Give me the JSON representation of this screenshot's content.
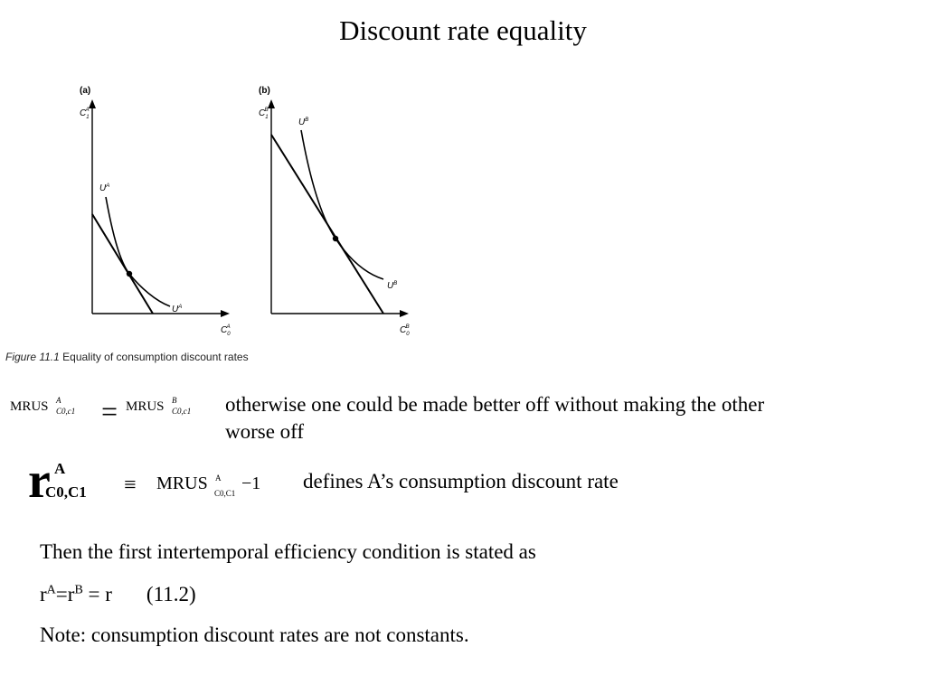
{
  "slide": {
    "title": "Discount rate equality"
  },
  "figure": {
    "panel_a_label": "(a)",
    "panel_b_label": "(b)",
    "a_y_axis": {
      "base": "C",
      "sub": "1",
      "sup": "A"
    },
    "a_x_axis": {
      "base": "C",
      "sub": "0",
      "sup": "A"
    },
    "a_curve_top": {
      "base": "U",
      "sup": "A"
    },
    "a_curve_bottom": {
      "base": "U",
      "sup": "A"
    },
    "b_y_axis": {
      "base": "C",
      "sub": "1",
      "sup": "B"
    },
    "b_x_axis": {
      "base": "C",
      "sub": "0",
      "sup": "B"
    },
    "b_curve_top": {
      "base": "U",
      "sup": "B"
    },
    "b_curve_bottom": {
      "base": "U",
      "sup": "B"
    },
    "caption_label": "Figure 11.1",
    "caption_text": "Equality of consumption discount rates"
  },
  "equation1": {
    "left_mrus": "MRUS",
    "left_sup": "A",
    "left_sub": "C0,c1",
    "equals": "=",
    "right_mrus": "MRUS",
    "right_sup": "B",
    "right_sub": "C0,c1",
    "note_line1": "otherwise one could be made better off without making the other",
    "note_line2": "worse off"
  },
  "equation2": {
    "r": "r",
    "r_sup": "A",
    "r_sub": "C0,C1",
    "equiv": "≡",
    "mrus": "MRUS",
    "mrus_sup": "A",
    "mrus_sub": "C0,C1",
    "minus_one": "−1",
    "note": "defines A’s consumption discount rate"
  },
  "body": {
    "line1": "Then the first intertemporal efficiency condition is stated as",
    "line2_r1": "r",
    "line2_sup1": "A",
    "line2_eq": "=r",
    "line2_sup2": "B",
    "line2_rest": " = r",
    "line2_ref": "(11.2)",
    "line3": "Note: consumption discount rates are not constants."
  }
}
